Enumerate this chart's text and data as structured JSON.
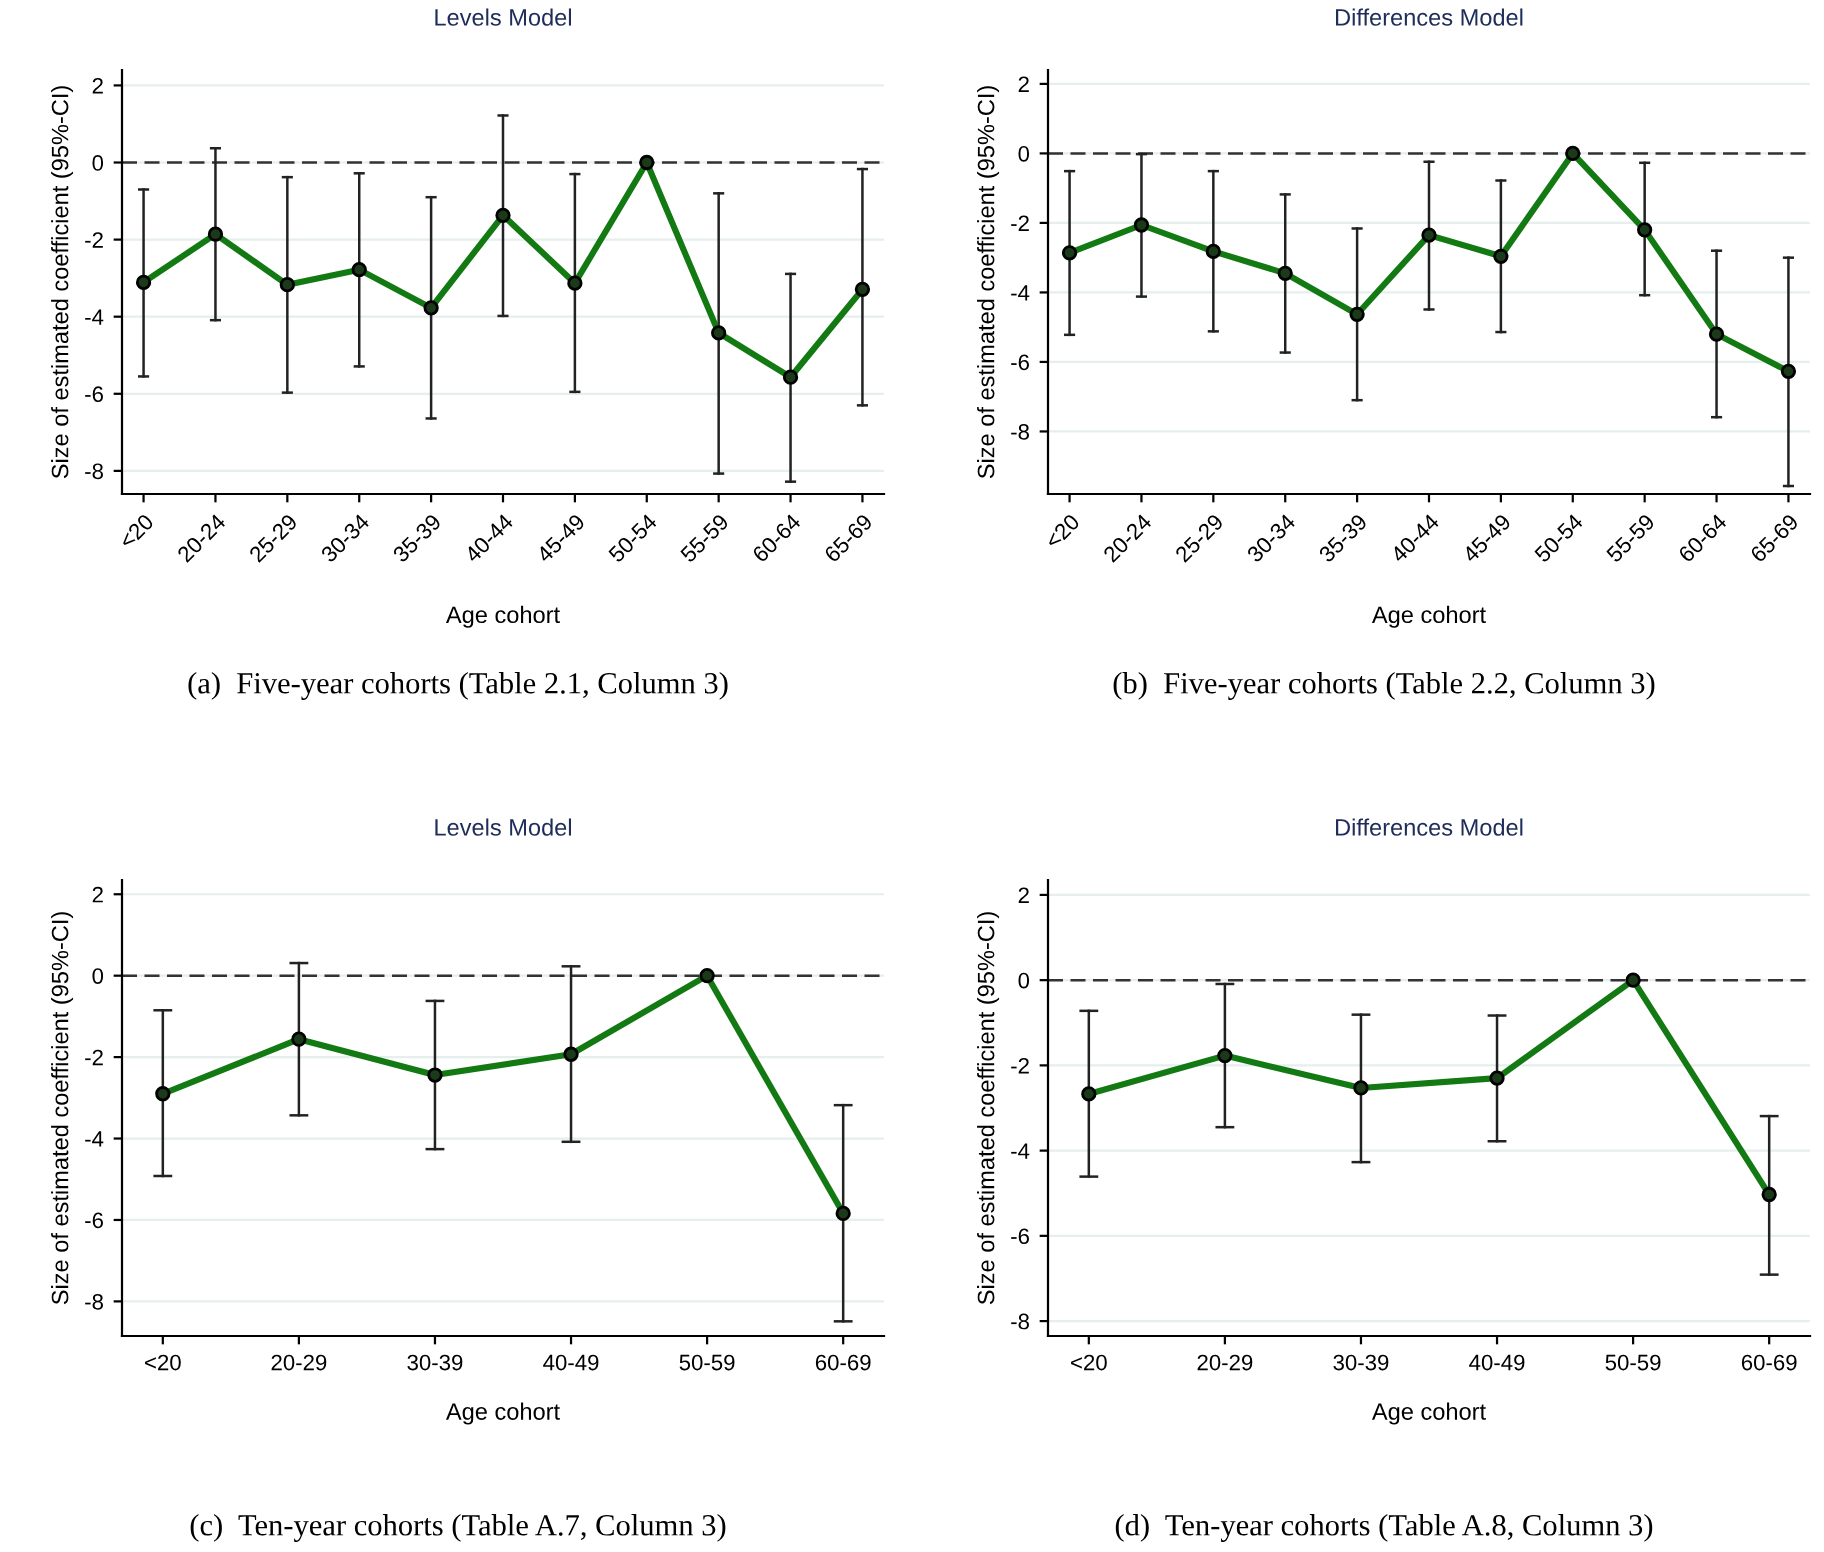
{
  "chart_data": [
    {
      "type": "line",
      "title": "Levels Model",
      "xlabel": "Age cohort",
      "ylabel": "Size of estimated coefficient (95%-CI)",
      "categories": [
        "<20",
        "20-24",
        "25-29",
        "30-34",
        "35-39",
        "40-44",
        "45-49",
        "50-54",
        "55-59",
        "60-64",
        "65-69"
      ],
      "series": [
        {
          "color": "#137a13",
          "values": [
            -3.11,
            -1.86,
            -3.17,
            -2.78,
            -3.77,
            -1.37,
            -3.13,
            0,
            -4.42,
            -5.57,
            -3.29
          ],
          "errors": [
            [
              -5.55,
              -0.7
            ],
            [
              -4.09,
              0.37
            ],
            [
              -5.97,
              -0.38
            ],
            [
              -5.29,
              -0.28
            ],
            [
              -6.64,
              -0.9
            ],
            [
              -3.98,
              1.22
            ],
            [
              -5.95,
              -0.3
            ],
            null,
            [
              -8.07,
              -0.8
            ],
            [
              -8.28,
              -2.89
            ],
            [
              -6.3,
              -0.17
            ]
          ]
        }
      ],
      "ylim": [
        -8.6,
        2.4
      ],
      "yticks": [
        -8,
        -6,
        -4,
        -2,
        0,
        2
      ],
      "ref_lines": [
        {
          "axis": "y",
          "value": 0,
          "line_style": "dashed",
          "color": "#333333"
        }
      ],
      "grid": "y",
      "marker": "circle",
      "line_style": "solid",
      "annotations": [
        "(a)  Five-year cohorts (Table 2.1, Column 3)"
      ]
    },
    {
      "type": "line",
      "title": "Differences Model",
      "xlabel": "Age cohort",
      "ylabel": "Size of estimated coefficient (95%-CI)",
      "categories": [
        "<20",
        "20-24",
        "25-29",
        "30-34",
        "35-39",
        "40-44",
        "45-49",
        "50-54",
        "55-59",
        "60-64",
        "65-69"
      ],
      "series": [
        {
          "color": "#137a13",
          "values": [
            -2.86,
            -2.06,
            -2.82,
            -3.45,
            -4.63,
            -2.35,
            -2.96,
            0,
            -2.2,
            -5.2,
            -6.27
          ],
          "errors": [
            [
              -5.22,
              -0.51
            ],
            [
              -4.12,
              -0.02
            ],
            [
              -5.12,
              -0.51
            ],
            [
              -5.73,
              -1.18
            ],
            [
              -7.1,
              -2.16
            ],
            [
              -4.49,
              -0.24
            ],
            [
              -5.14,
              -0.78
            ],
            null,
            [
              -4.08,
              -0.27
            ],
            [
              -7.59,
              -2.8
            ],
            [
              -9.57,
              -3.0
            ]
          ]
        }
      ],
      "ylim": [
        -9.8,
        2.4
      ],
      "yticks": [
        -8,
        -6,
        -4,
        -2,
        0,
        2
      ],
      "ref_lines": [
        {
          "axis": "y",
          "value": 0,
          "line_style": "dashed",
          "color": "#333333"
        }
      ],
      "grid": "y",
      "marker": "circle",
      "line_style": "solid",
      "annotations": [
        "(b)  Five-year cohorts (Table 2.2, Column 3)"
      ]
    },
    {
      "type": "line",
      "title": "Levels Model",
      "xlabel": "Age cohort",
      "ylabel": "Size of estimated coefficient (95%-CI)",
      "categories": [
        "<20",
        "20-29",
        "30-39",
        "40-49",
        "50-59",
        "60-69"
      ],
      "series": [
        {
          "color": "#137a13",
          "values": [
            -2.9,
            -1.56,
            -2.44,
            -1.93,
            0,
            -5.84
          ],
          "errors": [
            [
              -4.92,
              -0.85
            ],
            [
              -3.43,
              0.31
            ],
            [
              -4.26,
              -0.62
            ],
            [
              -4.08,
              0.23
            ],
            null,
            [
              -8.49,
              -3.18
            ]
          ]
        }
      ],
      "ylim": [
        -8.85,
        2.35
      ],
      "yticks": [
        -8,
        -6,
        -4,
        -2,
        0,
        2
      ],
      "ref_lines": [
        {
          "axis": "y",
          "value": 0,
          "line_style": "dashed",
          "color": "#333333"
        }
      ],
      "grid": "y",
      "marker": "circle",
      "line_style": "solid",
      "annotations": [
        "(c)  Ten-year cohorts (Table A.7, Column 3)"
      ]
    },
    {
      "type": "line",
      "title": "Differences Model",
      "xlabel": "Age cohort",
      "ylabel": "Size of estimated coefficient (95%-CI)",
      "categories": [
        "<20",
        "20-29",
        "30-39",
        "40-49",
        "50-59",
        "60-69"
      ],
      "series": [
        {
          "color": "#137a13",
          "values": [
            -2.67,
            -1.77,
            -2.53,
            -2.3,
            0,
            -5.03
          ],
          "errors": [
            [
              -4.61,
              -0.72
            ],
            [
              -3.45,
              -0.09
            ],
            [
              -4.27,
              -0.81
            ],
            [
              -3.78,
              -0.83
            ],
            null,
            [
              -6.91,
              -3.19
            ]
          ]
        }
      ],
      "ylim": [
        -8.35,
        2.35
      ],
      "yticks": [
        -8,
        -6,
        -4,
        -2,
        0,
        2
      ],
      "ref_lines": [
        {
          "axis": "y",
          "value": 0,
          "line_style": "dashed",
          "color": "#333333"
        }
      ],
      "grid": "y",
      "marker": "circle",
      "line_style": "solid",
      "annotations": [
        "(d)  Ten-year cohorts (Table A.8, Column 3)"
      ]
    }
  ]
}
